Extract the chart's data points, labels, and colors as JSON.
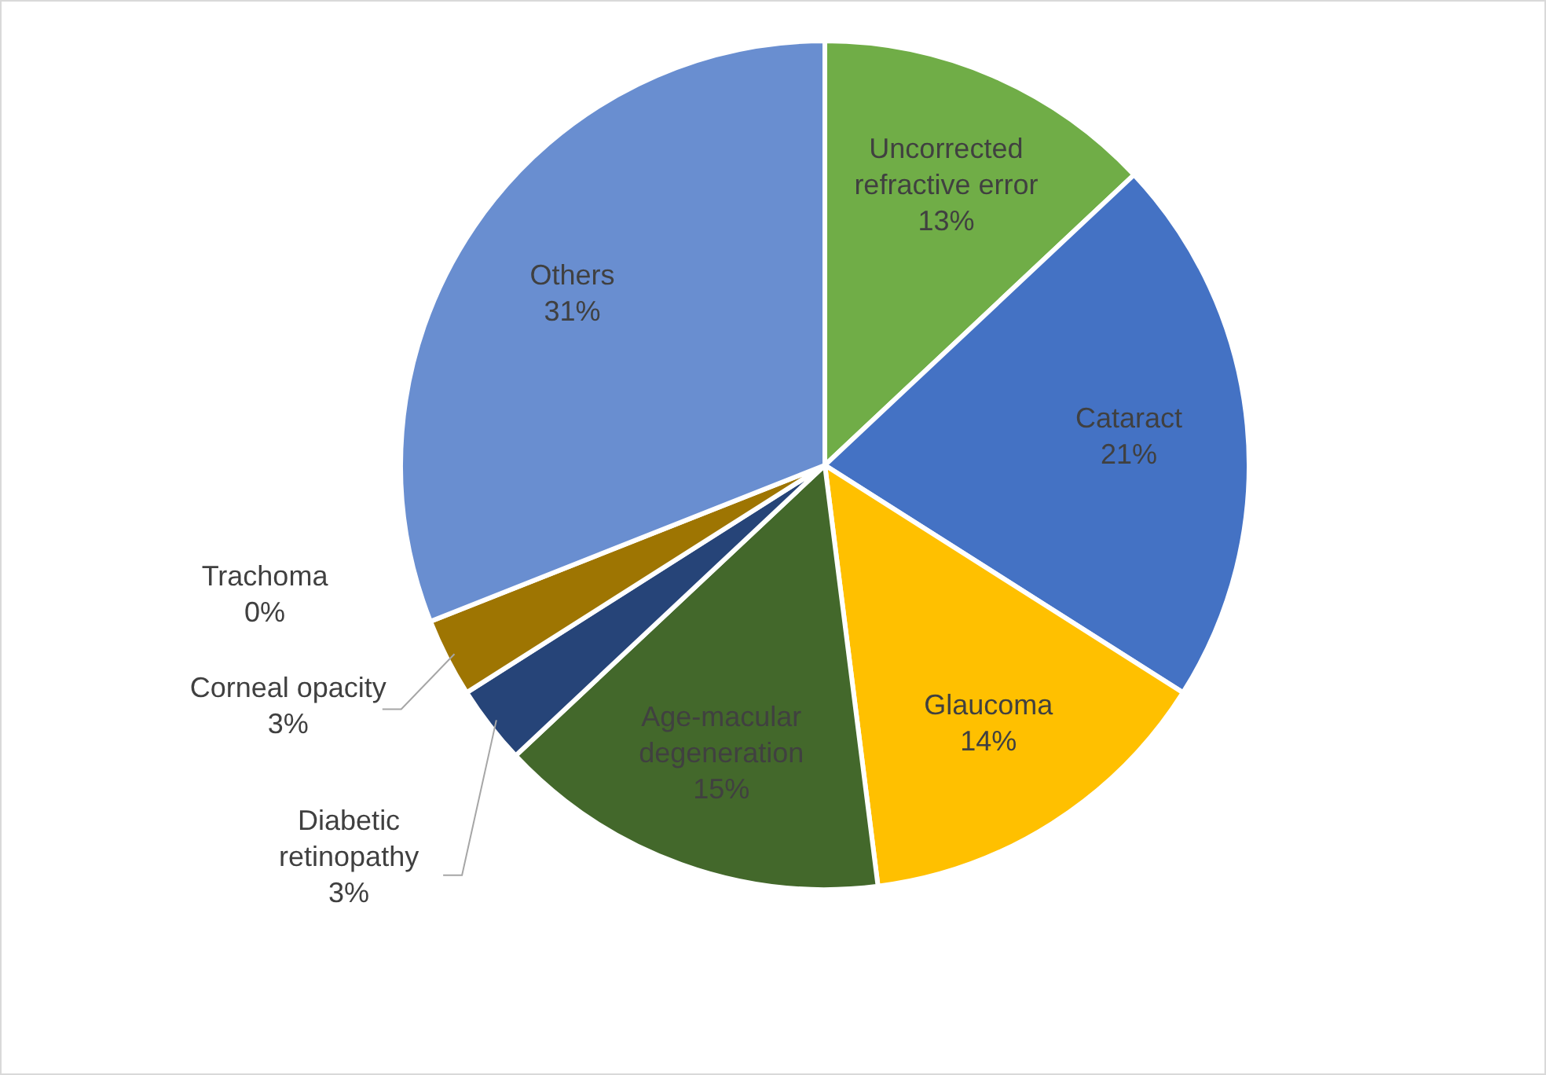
{
  "chart_data": {
    "type": "pie",
    "categories": [
      "Uncorrected refractive error",
      "Cataract",
      "Glaucoma",
      "Age-macular degeneration",
      "Diabetic retinopathy",
      "Corneal opacity",
      "Trachoma",
      "Others"
    ],
    "values": [
      13,
      21,
      14,
      15,
      3,
      3,
      0,
      31
    ],
    "colors": [
      "#70ad47",
      "#4472c4",
      "#ffc000",
      "#43682b",
      "#264478",
      "#9e7502",
      "#636363",
      "#698ed0"
    ],
    "value_labels": [
      "13%",
      "21%",
      "14%",
      "15%",
      "3%",
      "3%",
      "0%",
      "31%"
    ]
  }
}
